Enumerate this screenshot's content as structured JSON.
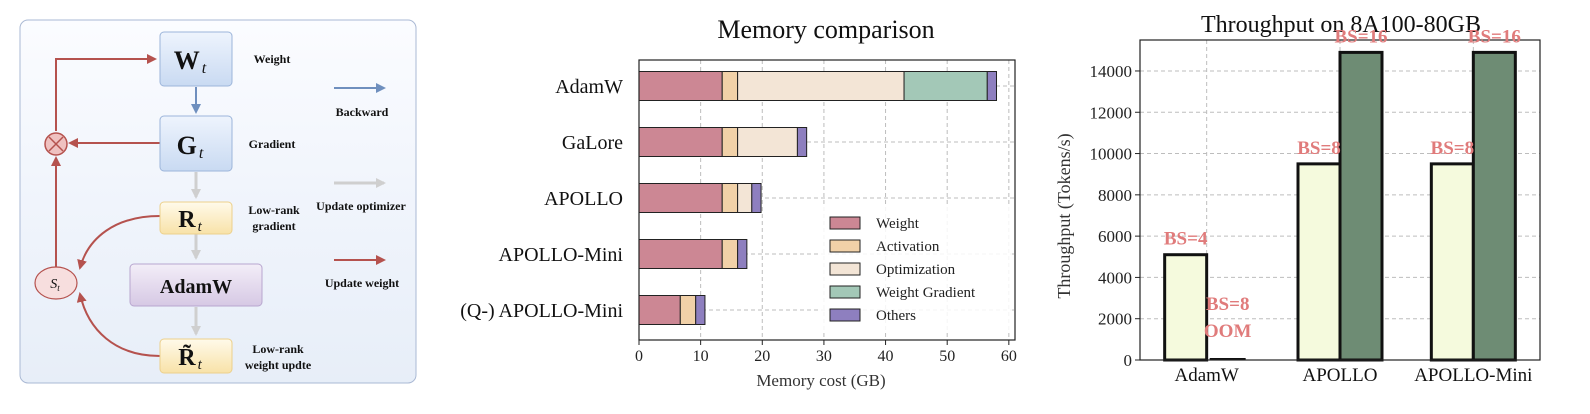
{
  "diagram": {
    "nodes": [
      {
        "id": "w",
        "label": "W",
        "sub": "t",
        "desc": "Weight"
      },
      {
        "id": "g",
        "label": "G",
        "sub": "t",
        "desc": "Gradient"
      },
      {
        "id": "r",
        "label": "R",
        "sub": "t",
        "desc_lines": [
          "Low-rank",
          "gradient"
        ]
      },
      {
        "id": "adamw",
        "label": "AdamW"
      },
      {
        "id": "rt",
        "label": "R̃",
        "sub": "t",
        "desc_lines": [
          "Low-rank",
          "weight updte"
        ]
      },
      {
        "id": "s",
        "label": "S",
        "sub": "t"
      }
    ],
    "legend": [
      {
        "label": "Backward",
        "color": "#6f8fbe"
      },
      {
        "label": "Update optimizer",
        "color": "#cfcfcf"
      },
      {
        "label": "Update weight",
        "color": "#b5524e"
      }
    ],
    "multiply_symbol": "⊗"
  },
  "chart_data": [
    {
      "type": "bar",
      "orientation": "horizontal",
      "stacked": true,
      "title": "Memory comparison",
      "xlabel": "Memory cost (GB)",
      "ylabel": "",
      "xlim": [
        0,
        61
      ],
      "xticks": [
        0,
        10,
        20,
        30,
        40,
        50,
        60
      ],
      "grid": true,
      "legend_position": "lower-right",
      "categories": [
        "AdamW",
        "GaLore",
        "APOLLO",
        "APOLLO-Mini",
        "(Q-) APOLLO-Mini"
      ],
      "series": [
        {
          "name": "Weight",
          "color": "#cc8794",
          "values": [
            13.5,
            13.5,
            13.5,
            13.5,
            6.7
          ]
        },
        {
          "name": "Activation",
          "color": "#f1d1a8",
          "values": [
            2.5,
            2.5,
            2.5,
            2.5,
            2.5
          ]
        },
        {
          "name": "Optimization",
          "color": "#f3e5d6",
          "values": [
            27,
            9.7,
            2.3,
            0,
            0
          ]
        },
        {
          "name": "Weight Gradient",
          "color": "#a3c8b7",
          "values": [
            13.5,
            0,
            0,
            0,
            0
          ]
        },
        {
          "name": "Others",
          "color": "#8e7fbf",
          "values": [
            1.5,
            1.5,
            1.5,
            1.5,
            1.5
          ]
        }
      ]
    },
    {
      "type": "bar",
      "title": "Throughput on 8A100-80GB",
      "xlabel": "",
      "ylabel": "Throughput (Tokens/s)",
      "ylim": [
        0,
        15500
      ],
      "yticks": [
        0,
        2000,
        4000,
        6000,
        8000,
        10000,
        12000,
        14000
      ],
      "grid": true,
      "categories": [
        "AdamW",
        "APOLLO",
        "APOLLO-Mini"
      ],
      "series": [
        {
          "name": "",
          "color": "#f5fadd",
          "values": [
            5100,
            9500,
            9500
          ],
          "labels": [
            "BS=4",
            "BS=8",
            "BS=8"
          ]
        },
        {
          "name": "",
          "color": "#6e8c74",
          "values": [
            0,
            14900,
            14900
          ],
          "labels": [
            "BS=8\nOOM",
            "BS=16",
            "BS=16"
          ]
        }
      ],
      "label_color": "#e07b7b"
    }
  ]
}
